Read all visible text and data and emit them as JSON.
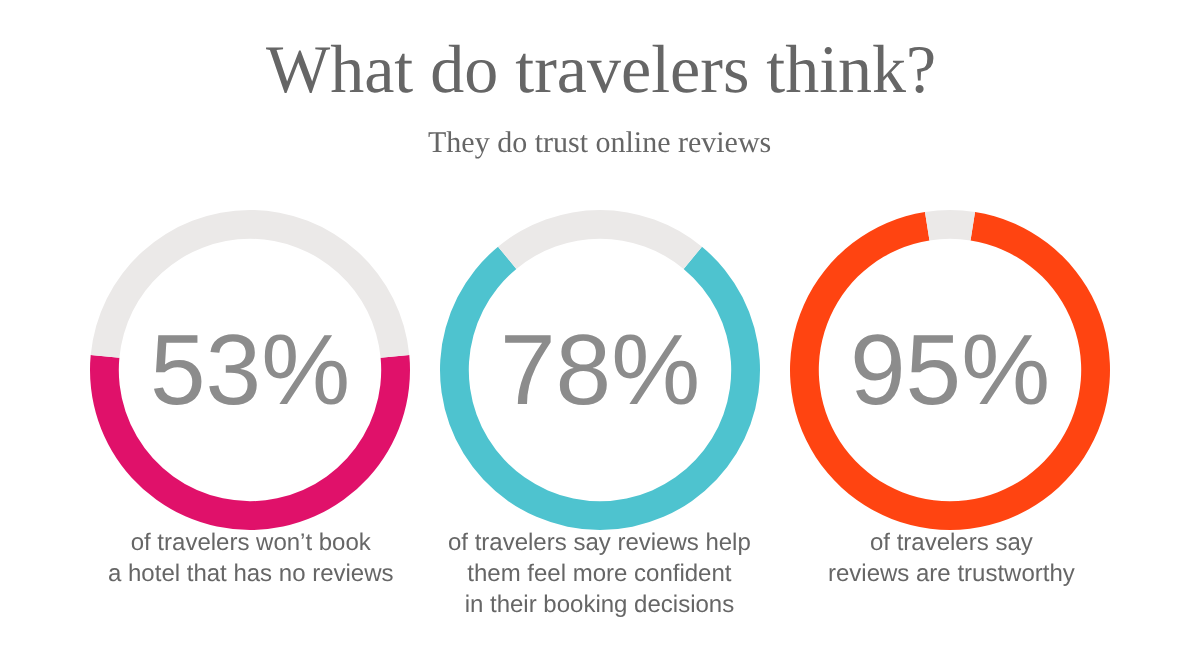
{
  "chart_data": [
    {
      "type": "other",
      "title": "What do travelers think?",
      "subtitle": "They do trust online reviews"
    },
    {
      "type": "donut",
      "categories": [
        null,
        null
      ],
      "values": [
        53,
        47
      ],
      "colors": [
        "#e0116a",
        "#ebe9e8"
      ],
      "value_labels": [
        "53%",
        null
      ],
      "annotations": [
        "of travelers won’t book\na hotel that has no reviews"
      ]
    },
    {
      "type": "donut",
      "categories": [
        null,
        null
      ],
      "values": [
        78,
        22
      ],
      "colors": [
        "#4ec3cf",
        "#ebe9e8"
      ],
      "value_labels": [
        "78%",
        null
      ],
      "annotations": [
        "of travelers say reviews help\nthem feel more confident\nin their booking decisions"
      ]
    },
    {
      "type": "donut",
      "categories": [
        null,
        null
      ],
      "values": [
        95,
        5
      ],
      "colors": [
        "#ff4411",
        "#ebe9e8"
      ],
      "value_labels": [
        "95%",
        null
      ],
      "annotations": [
        "of travelers say\nreviews are trustworthy"
      ]
    }
  ]
}
